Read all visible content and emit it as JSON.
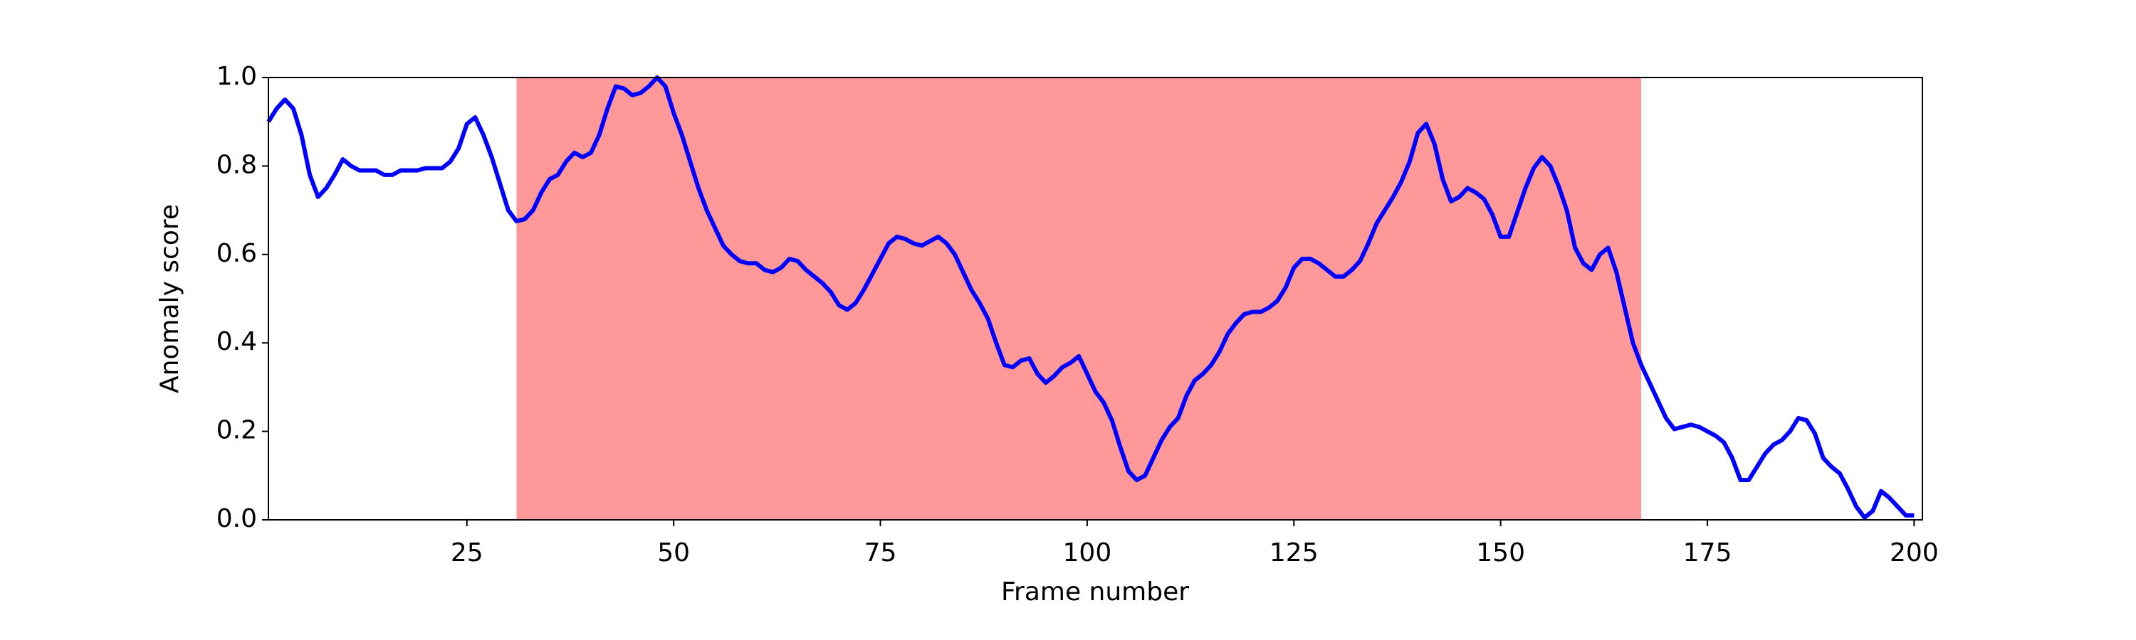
{
  "chart_data": {
    "type": "line",
    "xlabel": "Frame number",
    "ylabel": "Anomaly score",
    "xlim": [
      1,
      201
    ],
    "ylim": [
      0,
      1
    ],
    "xticks": [
      25,
      50,
      75,
      100,
      125,
      150,
      175,
      200
    ],
    "yticks": [
      {
        "value": 0,
        "label": "0.0"
      },
      {
        "value": 0.2,
        "label": "0.2"
      },
      {
        "value": 0.4,
        "label": "0.4"
      },
      {
        "value": 0.6,
        "label": "0.6"
      },
      {
        "value": 0.8,
        "label": "0.8"
      },
      {
        "value": 1,
        "label": "1.0"
      }
    ],
    "highlight": {
      "start": 31,
      "end": 167,
      "color": "#ff9999"
    },
    "x": [
      1,
      2,
      3,
      4,
      5,
      6,
      7,
      8,
      9,
      10,
      11,
      12,
      13,
      14,
      15,
      16,
      17,
      18,
      19,
      20,
      21,
      22,
      23,
      24,
      25,
      26,
      27,
      28,
      29,
      30,
      31,
      32,
      33,
      34,
      35,
      36,
      37,
      38,
      39,
      40,
      41,
      42,
      43,
      44,
      45,
      46,
      47,
      48,
      49,
      50,
      51,
      52,
      53,
      54,
      55,
      56,
      57,
      58,
      59,
      60,
      61,
      62,
      63,
      64,
      65,
      66,
      67,
      68,
      69,
      70,
      71,
      72,
      73,
      74,
      75,
      76,
      77,
      78,
      79,
      80,
      81,
      82,
      83,
      84,
      85,
      86,
      87,
      88,
      89,
      90,
      91,
      92,
      93,
      94,
      95,
      96,
      97,
      98,
      99,
      100,
      101,
      102,
      103,
      104,
      105,
      106,
      107,
      108,
      109,
      110,
      111,
      112,
      113,
      114,
      115,
      116,
      117,
      118,
      119,
      120,
      121,
      122,
      123,
      124,
      125,
      126,
      127,
      128,
      129,
      130,
      131,
      132,
      133,
      134,
      135,
      136,
      137,
      138,
      139,
      140,
      141,
      142,
      143,
      144,
      145,
      146,
      147,
      148,
      149,
      150,
      151,
      152,
      153,
      154,
      155,
      156,
      157,
      158,
      159,
      160,
      161,
      162,
      163,
      164,
      165,
      166,
      167,
      168,
      169,
      170,
      171,
      172,
      173,
      174,
      175,
      176,
      177,
      178,
      179,
      180,
      181,
      182,
      183,
      184,
      185,
      186,
      187,
      188,
      189,
      190,
      191,
      192,
      193,
      194,
      195,
      196,
      197,
      198,
      199,
      200
    ],
    "series": [
      {
        "color": "#0000ff",
        "values": [
          0.9,
          0.93,
          0.95,
          0.93,
          0.87,
          0.78,
          0.73,
          0.75,
          0.78,
          0.815,
          0.8,
          0.79,
          0.79,
          0.79,
          0.78,
          0.78,
          0.79,
          0.79,
          0.79,
          0.795,
          0.795,
          0.795,
          0.81,
          0.84,
          0.895,
          0.91,
          0.87,
          0.82,
          0.76,
          0.7,
          0.675,
          0.68,
          0.7,
          0.74,
          0.77,
          0.78,
          0.81,
          0.83,
          0.82,
          0.83,
          0.87,
          0.93,
          0.98,
          0.975,
          0.96,
          0.965,
          0.98,
          1.0,
          0.98,
          0.92,
          0.87,
          0.81,
          0.75,
          0.7,
          0.66,
          0.62,
          0.6,
          0.585,
          0.58,
          0.58,
          0.565,
          0.56,
          0.57,
          0.59,
          0.585,
          0.565,
          0.55,
          0.535,
          0.515,
          0.485,
          0.475,
          0.49,
          0.52,
          0.555,
          0.59,
          0.625,
          0.64,
          0.635,
          0.625,
          0.62,
          0.63,
          0.64,
          0.625,
          0.6,
          0.56,
          0.52,
          0.49,
          0.455,
          0.4,
          0.35,
          0.345,
          0.36,
          0.365,
          0.33,
          0.31,
          0.325,
          0.345,
          0.355,
          0.37,
          0.33,
          0.29,
          0.265,
          0.225,
          0.165,
          0.11,
          0.09,
          0.1,
          0.14,
          0.18,
          0.21,
          0.23,
          0.28,
          0.315,
          0.33,
          0.35,
          0.38,
          0.42,
          0.445,
          0.465,
          0.47,
          0.47,
          0.48,
          0.495,
          0.525,
          0.57,
          0.59,
          0.59,
          0.58,
          0.565,
          0.55,
          0.55,
          0.565,
          0.585,
          0.625,
          0.67,
          0.7,
          0.73,
          0.765,
          0.81,
          0.875,
          0.895,
          0.85,
          0.77,
          0.72,
          0.73,
          0.75,
          0.74,
          0.725,
          0.69,
          0.64,
          0.64,
          0.695,
          0.75,
          0.795,
          0.82,
          0.8,
          0.755,
          0.7,
          0.615,
          0.58,
          0.565,
          0.6,
          0.615,
          0.56,
          0.48,
          0.4,
          0.35,
          0.31,
          0.27,
          0.23,
          0.205,
          0.21,
          0.215,
          0.21,
          0.2,
          0.19,
          0.175,
          0.14,
          0.09,
          0.09,
          0.12,
          0.15,
          0.17,
          0.18,
          0.2,
          0.23,
          0.225,
          0.195,
          0.14,
          0.12,
          0.105,
          0.07,
          0.03,
          0.005,
          0.02,
          0.065,
          0.05,
          0.03,
          0.01,
          0.01
        ]
      }
    ]
  }
}
